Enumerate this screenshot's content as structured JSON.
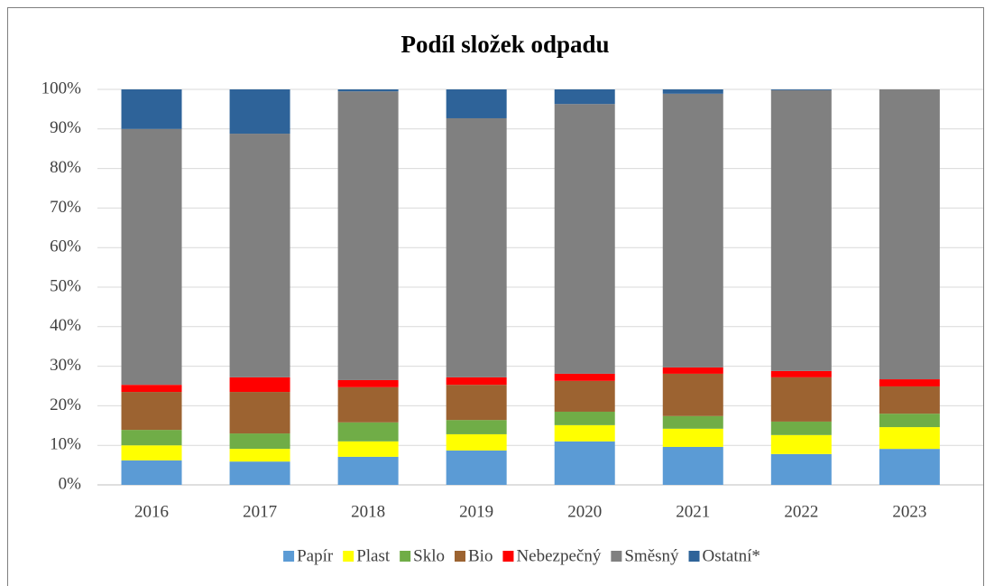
{
  "chart_data": {
    "type": "stacked_bar",
    "title": "Podíl složek odpadu",
    "categories": [
      "2016",
      "2017",
      "2018",
      "2019",
      "2020",
      "2021",
      "2022",
      "2023"
    ],
    "series": [
      {
        "name": "Papír",
        "color": "#5b9bd5",
        "values": [
          6.2,
          5.9,
          7.1,
          8.7,
          11.0,
          9.6,
          7.8,
          9.1
        ]
      },
      {
        "name": "Plast",
        "color": "#ffff00",
        "values": [
          3.8,
          3.2,
          3.9,
          4.1,
          4.1,
          4.6,
          4.8,
          5.5
        ]
      },
      {
        "name": "Sklo",
        "color": "#70ad47",
        "values": [
          3.9,
          3.9,
          4.8,
          3.6,
          3.4,
          3.2,
          3.4,
          3.4
        ]
      },
      {
        "name": "Bio",
        "color": "#9c6331",
        "values": [
          9.6,
          10.5,
          8.9,
          8.9,
          7.8,
          10.7,
          11.2,
          6.9
        ]
      },
      {
        "name": "Nebezpečný",
        "color": "#ff0000",
        "values": [
          1.8,
          3.7,
          1.8,
          1.9,
          1.8,
          1.6,
          1.6,
          1.8
        ]
      },
      {
        "name": "Směsný",
        "color": "#808080",
        "values": [
          64.7,
          61.6,
          73.0,
          65.5,
          68.2,
          69.2,
          71.0,
          73.3
        ]
      },
      {
        "name": "Ostatní*",
        "color": "#2e6399",
        "values": [
          10.0,
          11.2,
          0.5,
          7.3,
          3.7,
          1.1,
          0.2,
          0.0
        ]
      }
    ],
    "ylim": [
      0,
      100
    ],
    "yticks": [
      {
        "value": 0,
        "label": "0%"
      },
      {
        "value": 10,
        "label": "10%"
      },
      {
        "value": 20,
        "label": "20%"
      },
      {
        "value": 30,
        "label": "30%"
      },
      {
        "value": 40,
        "label": "40%"
      },
      {
        "value": 50,
        "label": "50%"
      },
      {
        "value": 60,
        "label": "60%"
      },
      {
        "value": 70,
        "label": "70%"
      },
      {
        "value": 80,
        "label": "80%"
      },
      {
        "value": 90,
        "label": "90%"
      },
      {
        "value": 100,
        "label": "100%"
      }
    ],
    "grid": true,
    "legend": "bottom"
  }
}
